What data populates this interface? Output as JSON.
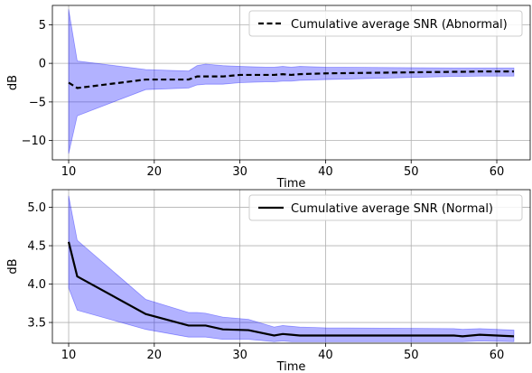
{
  "chart_data": [
    {
      "type": "line",
      "xlabel": "Time",
      "ylabel": "dB",
      "xlim": [
        8.1,
        63.9
      ],
      "ylim": [
        -12.5,
        7.5
      ],
      "xticks": [
        10,
        20,
        30,
        40,
        50,
        60
      ],
      "yticks": [
        -10,
        -5,
        0,
        5
      ],
      "ytick_labels": [
        "−10",
        "−5",
        "0",
        "5"
      ],
      "grid": true,
      "legend_position": "top-right",
      "series": [
        {
          "name": "Cumulative average SNR (Abnormal)",
          "line_style": "dashed",
          "color": "#000000",
          "band_color": "#0000ff",
          "x": [
            10,
            11,
            19,
            24,
            25,
            26,
            28,
            30,
            33,
            34,
            35,
            36,
            37,
            40,
            55,
            56,
            58,
            62
          ],
          "y": [
            -2.5,
            -3.2,
            -2.1,
            -2.1,
            -1.7,
            -1.7,
            -1.7,
            -1.5,
            -1.5,
            -1.5,
            -1.4,
            -1.5,
            -1.4,
            -1.3,
            -1.1,
            -1.1,
            -1.05,
            -1.05
          ],
          "upper": [
            7.0,
            0.3,
            -0.8,
            -1.0,
            -0.3,
            -0.1,
            -0.3,
            -0.4,
            -0.5,
            -0.5,
            -0.4,
            -0.5,
            -0.4,
            -0.5,
            -0.6,
            -0.6,
            -0.6,
            -0.6
          ],
          "lower": [
            -11.7,
            -6.8,
            -3.4,
            -3.2,
            -2.8,
            -2.7,
            -2.7,
            -2.5,
            -2.4,
            -2.4,
            -2.3,
            -2.3,
            -2.2,
            -2.1,
            -1.7,
            -1.7,
            -1.65,
            -1.65
          ]
        }
      ]
    },
    {
      "type": "line",
      "xlabel": "Time",
      "ylabel": "dB",
      "xlim": [
        8.1,
        63.9
      ],
      "ylim": [
        3.23,
        5.23
      ],
      "xticks": [
        10,
        20,
        30,
        40,
        50,
        60
      ],
      "yticks": [
        3.5,
        4.0,
        4.5,
        5.0
      ],
      "ytick_labels": [
        "3.5",
        "4.0",
        "4.5",
        "5.0"
      ],
      "grid": true,
      "legend_position": "top-right",
      "series": [
        {
          "name": "Cumulative average SNR (Normal)",
          "line_style": "solid",
          "color": "#000000",
          "band_color": "#0000ff",
          "x": [
            10,
            11,
            19,
            24,
            25,
            26,
            28,
            31,
            34,
            35,
            36,
            37,
            40,
            55,
            56,
            58,
            62
          ],
          "y": [
            4.55,
            4.1,
            3.61,
            3.46,
            3.46,
            3.46,
            3.41,
            3.4,
            3.33,
            3.35,
            3.34,
            3.33,
            3.33,
            3.33,
            3.32,
            3.34,
            3.32
          ],
          "upper": [
            5.15,
            4.57,
            3.8,
            3.63,
            3.63,
            3.62,
            3.57,
            3.54,
            3.44,
            3.46,
            3.45,
            3.44,
            3.43,
            3.42,
            3.41,
            3.42,
            3.4
          ],
          "lower": [
            3.95,
            3.66,
            3.41,
            3.31,
            3.31,
            3.31,
            3.28,
            3.28,
            3.25,
            3.26,
            3.25,
            3.25,
            3.25,
            3.25,
            3.25,
            3.26,
            3.25
          ]
        }
      ]
    }
  ]
}
